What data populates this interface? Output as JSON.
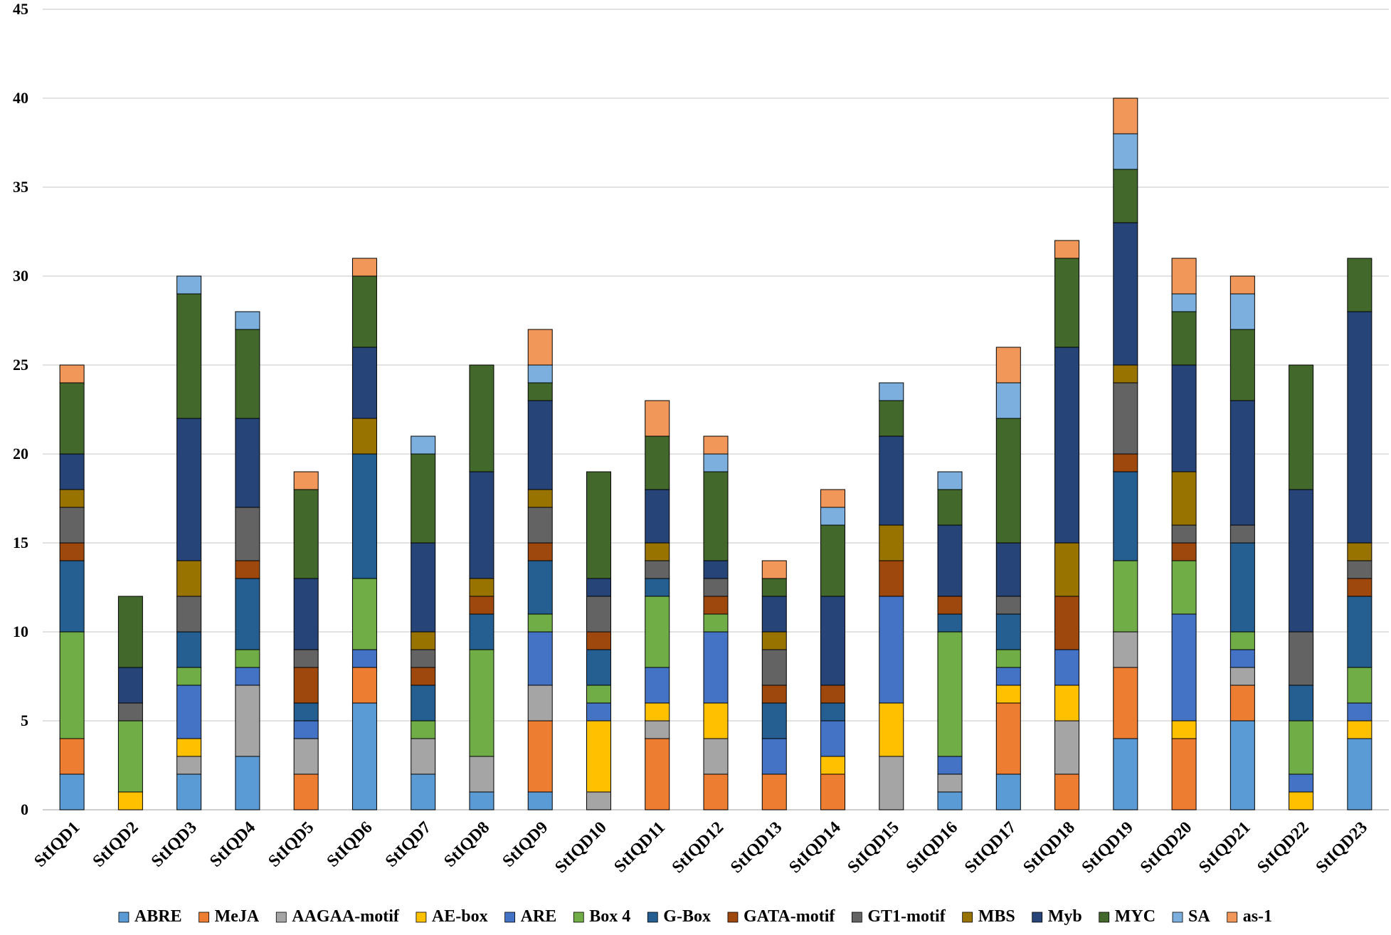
{
  "chart_data": {
    "type": "bar",
    "stacked": true,
    "title": "",
    "xlabel": "",
    "ylabel": "",
    "ylim": [
      0,
      45
    ],
    "yticks": [
      0,
      5,
      10,
      15,
      20,
      25,
      30,
      35,
      40,
      45
    ],
    "grid": true,
    "legend_position": "bottom",
    "categories": [
      "StIQD1",
      "StIQD2",
      "StIQD3",
      "StIQD4",
      "StIQD5",
      "StIQD6",
      "StIQD7",
      "StIQD8",
      "StIQD9",
      "StIQD10",
      "StIQD11",
      "StIQD12",
      "StIQD13",
      "StIQD14",
      "StIQD15",
      "StIQD16",
      "StIQD17",
      "StIQD18",
      "StIQD19",
      "StIQD20",
      "StIQD21",
      "StIQD22",
      "StIQD23"
    ],
    "series": [
      {
        "name": "ABRE",
        "color": "#5b9bd5",
        "values": [
          2,
          0,
          2,
          3,
          0,
          6,
          2,
          1,
          1,
          0,
          0,
          0,
          0,
          0,
          0,
          1,
          2,
          0,
          4,
          0,
          5,
          0,
          4
        ]
      },
      {
        "name": "MeJA",
        "color": "#ed7d31",
        "values": [
          2,
          0,
          0,
          0,
          2,
          2,
          0,
          0,
          4,
          0,
          4,
          2,
          2,
          2,
          0,
          0,
          4,
          2,
          4,
          4,
          2,
          0,
          0
        ]
      },
      {
        "name": "AAGAA-motif",
        "color": "#a5a5a5",
        "values": [
          0,
          0,
          1,
          4,
          2,
          0,
          2,
          2,
          2,
          1,
          1,
          2,
          0,
          0,
          3,
          1,
          0,
          3,
          2,
          0,
          1,
          0,
          0
        ]
      },
      {
        "name": "AE-box",
        "color": "#ffc000",
        "values": [
          0,
          1,
          1,
          0,
          0,
          0,
          0,
          0,
          0,
          4,
          1,
          2,
          0,
          1,
          3,
          0,
          1,
          2,
          0,
          1,
          0,
          1,
          1
        ]
      },
      {
        "name": "ARE",
        "color": "#4472c4",
        "values": [
          0,
          0,
          3,
          1,
          1,
          1,
          0,
          0,
          3,
          1,
          2,
          4,
          2,
          2,
          6,
          1,
          1,
          2,
          0,
          6,
          1,
          1,
          1
        ]
      },
      {
        "name": "Box 4",
        "color": "#70ad47",
        "values": [
          6,
          4,
          1,
          1,
          0,
          4,
          1,
          6,
          1,
          1,
          4,
          1,
          0,
          0,
          0,
          7,
          1,
          0,
          4,
          3,
          1,
          3,
          2
        ]
      },
      {
        "name": "G-Box",
        "color": "#255e91",
        "values": [
          4,
          0,
          2,
          4,
          1,
          7,
          2,
          2,
          3,
          2,
          1,
          0,
          2,
          1,
          0,
          1,
          2,
          0,
          5,
          0,
          5,
          2,
          4
        ]
      },
      {
        "name": "GATA-motif",
        "color": "#9e480e",
        "values": [
          1,
          0,
          0,
          1,
          2,
          0,
          1,
          1,
          1,
          1,
          0,
          1,
          1,
          1,
          2,
          1,
          0,
          3,
          1,
          1,
          0,
          0,
          1
        ]
      },
      {
        "name": "GT1-motif",
        "color": "#636363",
        "values": [
          2,
          1,
          2,
          3,
          1,
          0,
          1,
          0,
          2,
          2,
          1,
          1,
          2,
          0,
          0,
          0,
          1,
          0,
          4,
          1,
          1,
          3,
          1
        ]
      },
      {
        "name": "MBS",
        "color": "#997300",
        "values": [
          1,
          0,
          2,
          0,
          0,
          2,
          1,
          1,
          1,
          0,
          1,
          0,
          1,
          0,
          2,
          0,
          0,
          3,
          1,
          3,
          0,
          0,
          1
        ]
      },
      {
        "name": "Myb",
        "color": "#264478",
        "values": [
          2,
          2,
          8,
          5,
          4,
          4,
          5,
          6,
          5,
          1,
          3,
          1,
          2,
          5,
          5,
          4,
          3,
          11,
          8,
          6,
          7,
          8,
          13
        ]
      },
      {
        "name": "MYC",
        "color": "#43682b",
        "values": [
          4,
          4,
          7,
          5,
          5,
          4,
          5,
          6,
          1,
          6,
          3,
          5,
          1,
          4,
          2,
          2,
          7,
          5,
          3,
          3,
          4,
          7,
          3
        ]
      },
      {
        "name": "SA",
        "color": "#7cafdd",
        "values": [
          0,
          0,
          1,
          1,
          0,
          0,
          1,
          0,
          1,
          0,
          0,
          1,
          0,
          1,
          1,
          1,
          2,
          0,
          2,
          1,
          2,
          0,
          0
        ]
      },
      {
        "name": "as-1",
        "color": "#f1975a",
        "values": [
          1,
          0,
          0,
          0,
          1,
          1,
          0,
          0,
          2,
          0,
          2,
          1,
          1,
          1,
          0,
          0,
          2,
          1,
          2,
          2,
          1,
          0,
          0
        ]
      }
    ]
  }
}
